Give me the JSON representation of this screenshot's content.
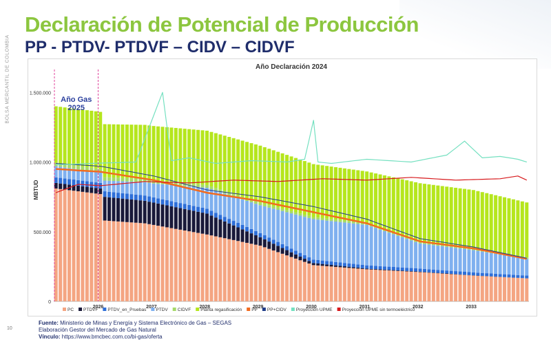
{
  "header": {
    "sidebar_text": "BOLSA MERCANTIL DE COLOMBIA",
    "title": "Declaración de Potencial de Producción",
    "subtitle": "PP - PTDV- PTDVF – CIDV – CIDVF"
  },
  "footer": {
    "source_label": "Fuente:",
    "source_text": "Ministerio de Minas y Energía y Sistema Electrónico de Gas – SEGAS",
    "elaboration": "Elaboración Gestor del Mercado de Gas Natural",
    "link_label": "Vínculo:",
    "link_text": "https://www.bmcbec.com.co/bi-gas/oferta",
    "page_number": "10"
  },
  "colors": {
    "PC": "#f4a582",
    "PTDVF": "#1a1a3a",
    "PTDV_en_Pruebas": "#2e6fd8",
    "PTDV": "#7fb0ef",
    "CIDVF": "#a6d96a",
    "Planta regasificación": "#b5e61d",
    "PP": "#f26b1f",
    "PP+CIDV": "#1f3c88",
    "Proyección UPME": "#74e0c0",
    "Proyección UPME sin termoeléctrico": "#d7191c",
    "title_green": "#8cc63f",
    "subtitle_navy": "#1f2d6b"
  },
  "chart_data": {
    "type": "bar",
    "stacked": true,
    "title": "Año Declaración 2024",
    "ylabel": "MBTUD",
    "xlabel": "",
    "ylim": [
      0,
      1600000
    ],
    "yticks": [
      0,
      500000,
      1000000,
      1500000
    ],
    "ytick_labels": [
      "0",
      "500.000",
      "1.000.000",
      "1.500.000"
    ],
    "grid": false,
    "legend_position": "bottom",
    "annotation": {
      "text_line1": "Año Gas",
      "text_line2": "2025",
      "start_month": 0,
      "end_month": 10
    },
    "year_labels": [
      {
        "label": "2026",
        "month": 10
      },
      {
        "label": "2027",
        "month": 22
      },
      {
        "label": "2028",
        "month": 34
      },
      {
        "label": "2029",
        "month": 46
      },
      {
        "label": "2030",
        "month": 58
      },
      {
        "label": "2031",
        "month": 70
      },
      {
        "label": "2032",
        "month": 82
      },
      {
        "label": "2033",
        "month": 94
      }
    ],
    "n_months": 107,
    "bar_series": [
      {
        "name": "PC",
        "color_key": "PC",
        "anchors": [
          [
            0,
            810000
          ],
          [
            10,
            770000
          ],
          [
            11,
            580000
          ],
          [
            20,
            560000
          ],
          [
            34,
            480000
          ],
          [
            46,
            400000
          ],
          [
            58,
            260000
          ],
          [
            70,
            230000
          ],
          [
            82,
            210000
          ],
          [
            94,
            185000
          ],
          [
            106,
            165000
          ]
        ]
      },
      {
        "name": "PTDVF",
        "color_key": "PTDVF",
        "anchors": [
          [
            0,
            40000
          ],
          [
            10,
            40000
          ],
          [
            11,
            170000
          ],
          [
            22,
            160000
          ],
          [
            34,
            150000
          ],
          [
            46,
            60000
          ],
          [
            58,
            15000
          ],
          [
            70,
            5000
          ],
          [
            106,
            0
          ]
        ]
      },
      {
        "name": "PTDV_en_Pruebas",
        "color_key": "PTDV_en_Pruebas",
        "anchors": [
          [
            0,
            40000
          ],
          [
            10,
            40000
          ],
          [
            34,
            35000
          ],
          [
            58,
            25000
          ],
          [
            82,
            22000
          ],
          [
            106,
            20000
          ]
        ]
      },
      {
        "name": "PTDV",
        "color_key": "PTDV",
        "anchors": [
          [
            0,
            80000
          ],
          [
            10,
            75000
          ],
          [
            22,
            100000
          ],
          [
            34,
            150000
          ],
          [
            46,
            200000
          ],
          [
            58,
            290000
          ],
          [
            70,
            290000
          ],
          [
            82,
            180000
          ],
          [
            94,
            160000
          ],
          [
            106,
            120000
          ]
        ]
      },
      {
        "name": "CIDVF",
        "color_key": "CIDVF",
        "anchors": [
          [
            0,
            25000
          ],
          [
            10,
            25000
          ],
          [
            34,
            20000
          ],
          [
            58,
            15000
          ],
          [
            106,
            10000
          ]
        ]
      },
      {
        "name": "Planta regasificación",
        "color_key": "Planta regasificación",
        "anchors": [
          [
            0,
            405000
          ],
          [
            10,
            410000
          ],
          [
            11,
            380000
          ],
          [
            22,
            390000
          ],
          [
            34,
            390000
          ],
          [
            46,
            410000
          ],
          [
            58,
            380000
          ],
          [
            70,
            370000
          ],
          [
            82,
            420000
          ],
          [
            94,
            420000
          ],
          [
            106,
            395000
          ]
        ]
      }
    ],
    "line_series": [
      {
        "name": "PP",
        "color_key": "PP",
        "width": 2.5,
        "anchors": [
          [
            0,
            950000
          ],
          [
            10,
            930000
          ],
          [
            22,
            870000
          ],
          [
            34,
            780000
          ],
          [
            46,
            720000
          ],
          [
            58,
            640000
          ],
          [
            70,
            560000
          ],
          [
            82,
            430000
          ],
          [
            94,
            380000
          ],
          [
            106,
            305000
          ]
        ]
      },
      {
        "name": "PP+CIDV",
        "color_key": "PP+CIDV",
        "width": 1,
        "anchors": [
          [
            0,
            990000
          ],
          [
            10,
            970000
          ],
          [
            22,
            900000
          ],
          [
            34,
            800000
          ],
          [
            46,
            750000
          ],
          [
            58,
            680000
          ],
          [
            70,
            590000
          ],
          [
            82,
            450000
          ],
          [
            94,
            390000
          ],
          [
            106,
            310000
          ]
        ]
      },
      {
        "name": "Proyección UPME",
        "color_key": "Proyección UPME",
        "width": 1.2,
        "anchors": [
          [
            0,
            980000
          ],
          [
            8,
            990000
          ],
          [
            18,
            1000000
          ],
          [
            24,
            1500000
          ],
          [
            26,
            1010000
          ],
          [
            30,
            1030000
          ],
          [
            36,
            990000
          ],
          [
            44,
            1010000
          ],
          [
            52,
            1000000
          ],
          [
            56,
            1020000
          ],
          [
            58,
            1300000
          ],
          [
            59,
            1000000
          ],
          [
            62,
            990000
          ],
          [
            70,
            1020000
          ],
          [
            80,
            1000000
          ],
          [
            88,
            1050000
          ],
          [
            92,
            1150000
          ],
          [
            96,
            1030000
          ],
          [
            100,
            1040000
          ],
          [
            104,
            1020000
          ],
          [
            106,
            1000000
          ]
        ]
      },
      {
        "name": "Proyección UPME sin termoeléctrico",
        "color_key": "Proyección UPME sin termoeléctrico",
        "width": 1.2,
        "anchors": [
          [
            0,
            780000
          ],
          [
            5,
            840000
          ],
          [
            10,
            830000
          ],
          [
            20,
            860000
          ],
          [
            30,
            850000
          ],
          [
            40,
            870000
          ],
          [
            50,
            860000
          ],
          [
            60,
            880000
          ],
          [
            70,
            870000
          ],
          [
            80,
            890000
          ],
          [
            90,
            870000
          ],
          [
            100,
            880000
          ],
          [
            104,
            900000
          ],
          [
            106,
            870000
          ]
        ]
      }
    ],
    "legend": [
      {
        "label": "PC",
        "kind": "square",
        "color_key": "PC"
      },
      {
        "label": "PTDVF",
        "kind": "square",
        "color_key": "PTDVF"
      },
      {
        "label": "PTDV_en_Pruebas",
        "kind": "square",
        "color_key": "PTDV_en_Pruebas"
      },
      {
        "label": "PTDV",
        "kind": "square",
        "color_key": "PTDV"
      },
      {
        "label": "CIDVF",
        "kind": "square",
        "color_key": "CIDVF"
      },
      {
        "label": "Planta regasificación",
        "kind": "square",
        "color_key": "Planta regasificación"
      },
      {
        "label": "PP",
        "kind": "square",
        "color_key": "PP"
      },
      {
        "label": "PP+CIDV",
        "kind": "square",
        "color_key": "PP+CIDV"
      },
      {
        "label": "Proyección UPME",
        "kind": "square",
        "color_key": "Proyección UPME"
      },
      {
        "label": "Proyección UPME sin termoeléctrico",
        "kind": "square",
        "color_key": "Proyección UPME sin termoeléctrico"
      }
    ]
  }
}
